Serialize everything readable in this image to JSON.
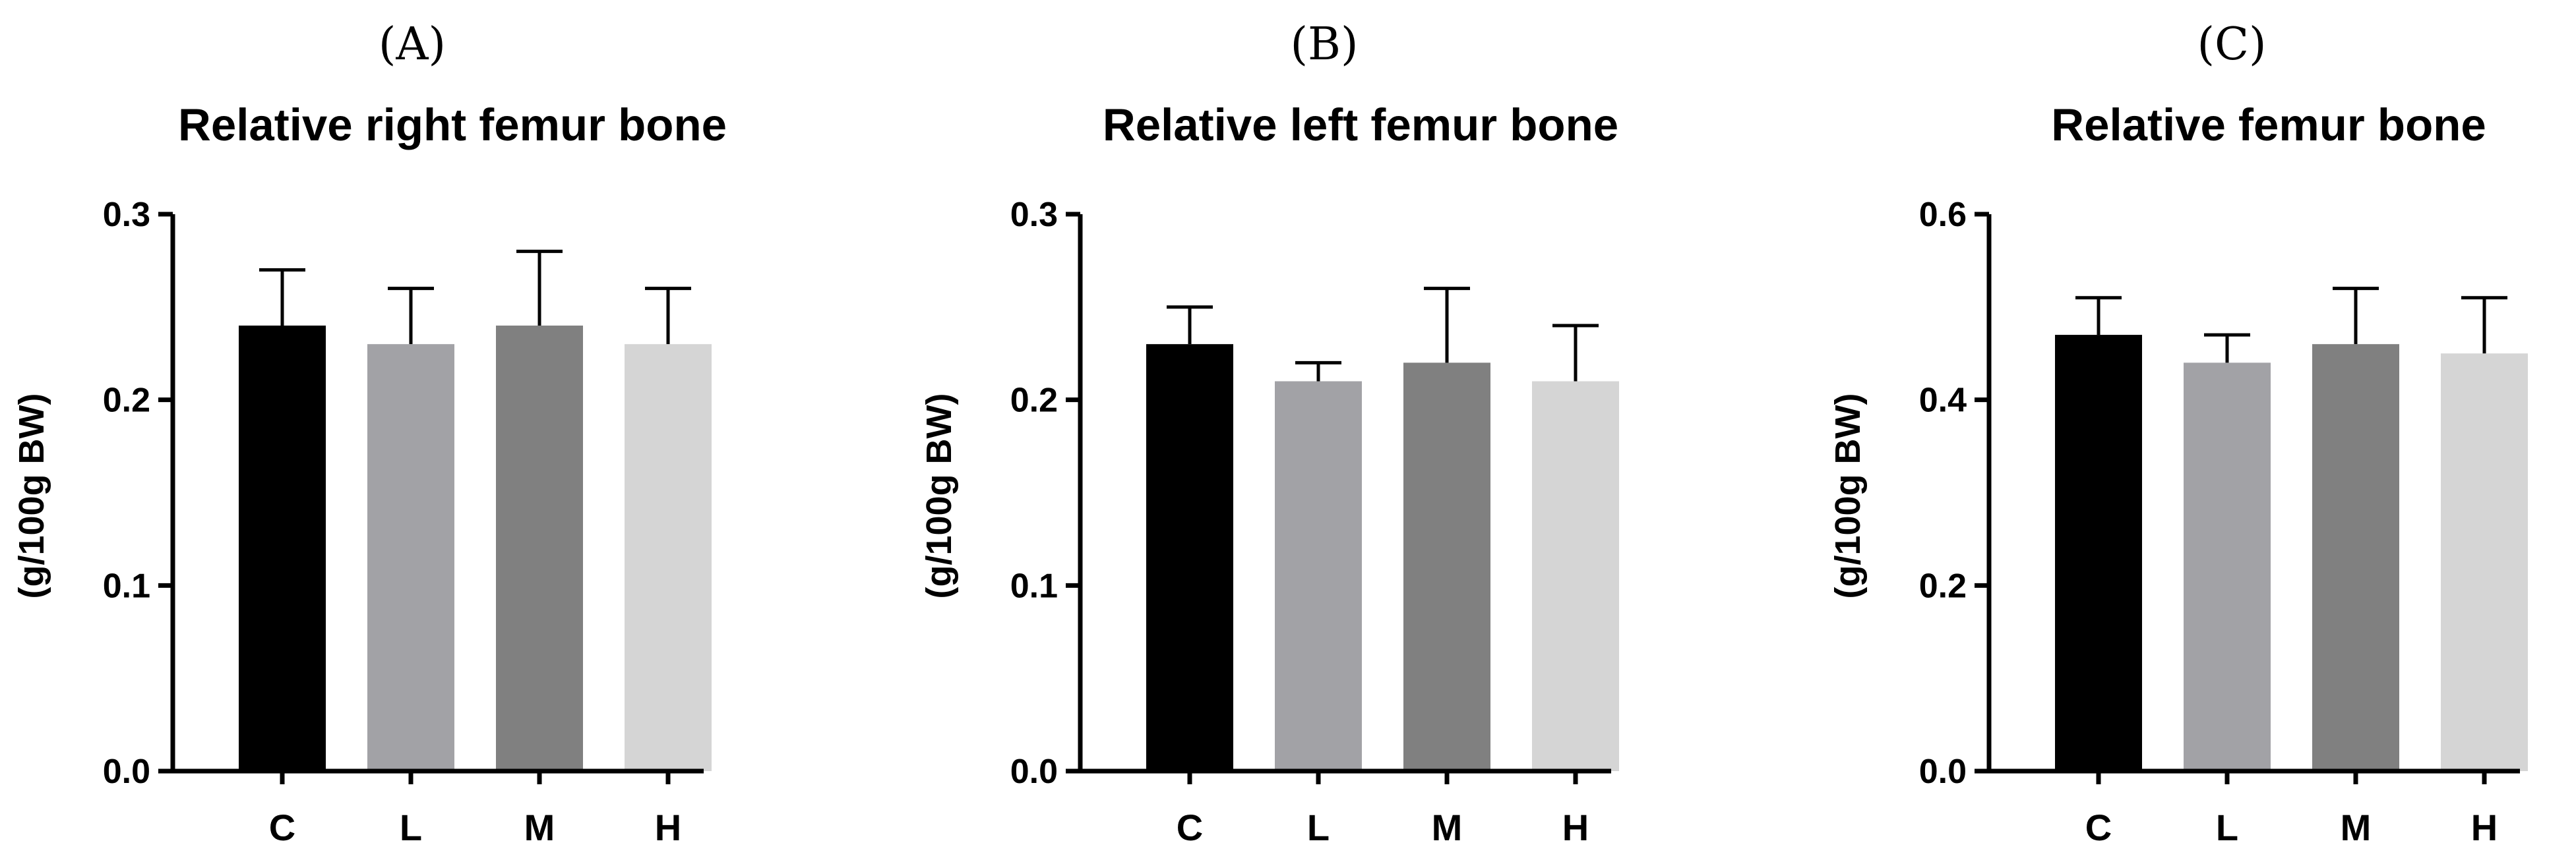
{
  "chart_data": [
    {
      "type": "bar",
      "panel_label": "(A)",
      "title": "Relative right femur bone",
      "xlabel": "",
      "ylabel": "(g/100g BW)",
      "ylim": [
        0,
        0.3
      ],
      "yticks": [
        "0.0",
        "0.1",
        "0.2",
        "0.3"
      ],
      "categories": [
        "C",
        "L",
        "M",
        "H"
      ],
      "values": [
        0.24,
        0.23,
        0.24,
        0.23
      ],
      "error_upper": [
        0.27,
        0.26,
        0.28,
        0.26
      ],
      "colors": [
        "#000000",
        "#a2a2a6",
        "#808080",
        "#d5d5d5"
      ],
      "grid": false,
      "legend": false
    },
    {
      "type": "bar",
      "panel_label": "(B)",
      "title": "Relative left femur bone",
      "xlabel": "",
      "ylabel": "(g/100g BW)",
      "ylim": [
        0,
        0.3
      ],
      "yticks": [
        "0.0",
        "0.1",
        "0.2",
        "0.3"
      ],
      "categories": [
        "C",
        "L",
        "M",
        "H"
      ],
      "values": [
        0.23,
        0.21,
        0.22,
        0.21
      ],
      "error_upper": [
        0.25,
        0.22,
        0.26,
        0.24
      ],
      "colors": [
        "#000000",
        "#a2a2a6",
        "#808080",
        "#d5d5d5"
      ],
      "grid": false,
      "legend": false
    },
    {
      "type": "bar",
      "panel_label": "(C)",
      "title": "Relative femur bone",
      "xlabel": "",
      "ylabel": "(g/100g BW)",
      "ylim": [
        0,
        0.6
      ],
      "yticks": [
        "0.0",
        "0.2",
        "0.4",
        "0.6"
      ],
      "categories": [
        "C",
        "L",
        "M",
        "H"
      ],
      "values": [
        0.47,
        0.44,
        0.46,
        0.45
      ],
      "error_upper": [
        0.51,
        0.47,
        0.52,
        0.51
      ],
      "colors": [
        "#000000",
        "#a2a2a6",
        "#808080",
        "#d5d5d5"
      ],
      "grid": false,
      "legend": false
    }
  ]
}
